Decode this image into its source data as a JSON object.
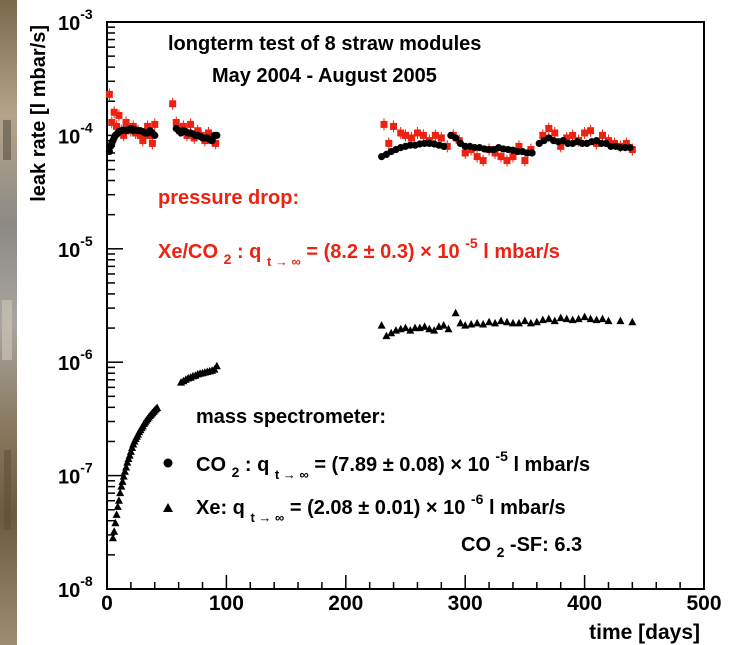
{
  "chart_data": {
    "type": "scatter",
    "title_line1": "longterm test of 8 straw modules",
    "title_line2": "May 2004 - August 2005",
    "xlabel": "time [days]",
    "ylabel": "leak rate [l mbar/s]",
    "xlim": [
      0,
      500
    ],
    "ylim": [
      1e-08,
      0.001
    ],
    "yscale": "log",
    "x_ticks": [
      0,
      100,
      200,
      300,
      400,
      500
    ],
    "x_tick_labels": [
      "0",
      "100",
      "200",
      "300",
      "400",
      "500"
    ],
    "y_tick_labels": [
      {
        "mantissa": "10",
        "exp": "-8"
      },
      {
        "mantissa": "10",
        "exp": "-7"
      },
      {
        "mantissa": "10",
        "exp": "-6"
      },
      {
        "mantissa": "10",
        "exp": "-5"
      },
      {
        "mantissa": "10",
        "exp": "-4"
      },
      {
        "mantissa": "10",
        "exp": "-3"
      }
    ],
    "grid": false,
    "colors": {
      "red": "#ee2211",
      "black": "#000000"
    },
    "annotations": {
      "pressure_drop": "pressure drop:",
      "xe_co2_formula": {
        "lhs": "Xe/CO",
        "lhs_sub": "2",
        "colon": ": q",
        "q_sub": "t → ∞",
        "rhs": " = (8.2 ± 0.3) × 10",
        "exp": "-5",
        "unit": " l mbar/s"
      },
      "mass_spec": "mass spectrometer:",
      "co2_formula": {
        "lhs": "CO",
        "lhs_sub": "2",
        "colon": ": q",
        "q_sub": "t → ∞",
        "rhs": " = (7.89 ± 0.08) × 10",
        "exp": "-5",
        "unit": " l mbar/s"
      },
      "xe_formula": {
        "lhs": "Xe: q",
        "q_sub": "t → ∞",
        "rhs": " = (2.08 ± 0.01) × 10",
        "exp": "-6",
        "unit": " l mbar/s"
      },
      "sf_label": {
        "lhs": "CO",
        "lhs_sub": "2",
        "rhs": "-SF: 6.3"
      }
    },
    "series": [
      {
        "marker": "square",
        "color": "#ee2211",
        "x": [
          2,
          4,
          6,
          8,
          10,
          12,
          14,
          16,
          18,
          20,
          22,
          24,
          26,
          28,
          30,
          32,
          34,
          36,
          38,
          40,
          55,
          58,
          61,
          64,
          67,
          70,
          73,
          76,
          79,
          82,
          85,
          88,
          91,
          232,
          236,
          240,
          246,
          250,
          255,
          260,
          265,
          270,
          275,
          280,
          285,
          290,
          295,
          300,
          305,
          310,
          315,
          320,
          325,
          330,
          335,
          340,
          345,
          350,
          355,
          365,
          370,
          375,
          380,
          385,
          390,
          395,
          400,
          405,
          410,
          415,
          420,
          425,
          430,
          435,
          440
        ],
        "y": [
          0.00023,
          0.00013,
          0.00016,
          0.00012,
          0.00015,
          0.00011,
          0.0001,
          0.00013,
          0.000115,
          0.00011,
          0.00012,
          0.000105,
          0.00011,
          0.0001,
          9e-05,
          0.0001,
          0.00012,
          0.0001,
          8.5e-05,
          0.000125,
          0.00019,
          0.00013,
          0.00011,
          0.00012,
          0.0001,
          0.000125,
          9.5e-05,
          0.00011,
          0.0001,
          9e-05,
          0.000105,
          9e-05,
          8.5e-05,
          0.000125,
          8.5e-05,
          0.00012,
          0.000105,
          0.0001,
          9.5e-05,
          0.000105,
          0.0001,
          9e-05,
          0.0001,
          9.5e-05,
          8e-05,
          0.0001,
          9e-05,
          7e-05,
          7.5e-05,
          6.5e-05,
          6e-05,
          7.5e-05,
          7e-05,
          6.5e-05,
          6e-05,
          6.5e-05,
          8e-05,
          6e-05,
          7.5e-05,
          0.0001,
          0.000115,
          0.000105,
          8e-05,
          9.5e-05,
          0.0001,
          9e-05,
          0.000105,
          0.00011,
          8.5e-05,
          0.0001,
          9e-05,
          8.5e-05,
          8e-05,
          8.5e-05,
          7.5e-05
        ]
      },
      {
        "marker": "circle",
        "color": "#000000",
        "x": [
          2,
          3,
          4,
          5,
          6,
          7,
          8,
          9,
          10,
          12,
          14,
          16,
          18,
          20,
          22,
          24,
          26,
          28,
          30,
          32,
          34,
          36,
          38,
          40,
          58,
          60,
          62,
          64,
          66,
          68,
          70,
          72,
          74,
          76,
          78,
          80,
          82,
          84,
          86,
          88,
          90,
          92,
          230,
          234,
          238,
          242,
          246,
          250,
          254,
          258,
          262,
          266,
          270,
          274,
          278,
          282,
          288,
          292,
          296,
          300,
          304,
          308,
          312,
          316,
          320,
          324,
          328,
          332,
          336,
          340,
          344,
          348,
          352,
          356,
          362,
          366,
          370,
          374,
          378,
          382,
          386,
          390,
          394,
          398,
          402,
          406,
          410,
          414,
          418,
          422,
          426,
          430,
          434,
          438
        ],
        "y": [
          7.2e-05,
          8e-05,
          8.5e-05,
          9e-05,
          9.5e-05,
          0.0001,
          0.000102,
          0.000105,
          0.000108,
          0.00011,
          0.000112,
          0.00011,
          0.000112,
          0.000115,
          0.00011,
          0.000112,
          0.00011,
          0.00011,
          0.000108,
          0.000105,
          0.000105,
          0.00011,
          0.000105,
          0.0001,
          0.000115,
          0.00011,
          0.000105,
          0.00011,
          0.000108,
          0.000105,
          0.000105,
          0.000103,
          0.0001,
          0.0001,
          9.8e-05,
          9.5e-05,
          9.5e-05,
          9.5e-05,
          9.2e-05,
          9e-05,
          0.0001,
          0.0001,
          6.5e-05,
          6.8e-05,
          7.2e-05,
          7.5e-05,
          7.8e-05,
          8e-05,
          8.2e-05,
          8.2e-05,
          8.4e-05,
          8.5e-05,
          8.5e-05,
          8.4e-05,
          8.2e-05,
          8e-05,
          0.0001,
          9.5e-05,
          8.5e-05,
          8e-05,
          8e-05,
          7.8e-05,
          7.8e-05,
          7.6e-05,
          7.5e-05,
          7.5e-05,
          7.8e-05,
          7.6e-05,
          7.5e-05,
          7.4e-05,
          7.2e-05,
          7.2e-05,
          7e-05,
          7e-05,
          8.5e-05,
          9e-05,
          9.5e-05,
          9e-05,
          8.8e-05,
          9e-05,
          8.5e-05,
          8.5e-05,
          8.8e-05,
          8.5e-05,
          8.5e-05,
          8.8e-05,
          9e-05,
          8.5e-05,
          8.5e-05,
          8e-05,
          8e-05,
          7.8e-05,
          7.8e-05,
          7.8e-05
        ]
      },
      {
        "marker": "triangle",
        "color": "#000000",
        "x": [
          5,
          6,
          7,
          8,
          9,
          10,
          11,
          12,
          13,
          14,
          15,
          16,
          17,
          18,
          19,
          20,
          21,
          22,
          23,
          24,
          25,
          26,
          27,
          28,
          29,
          30,
          31,
          32,
          33,
          34,
          35,
          36,
          37,
          38,
          39,
          40,
          41,
          42,
          62,
          64,
          66,
          68,
          70,
          72,
          74,
          76,
          78,
          80,
          82,
          84,
          86,
          88,
          90,
          92,
          230,
          234,
          238,
          242,
          246,
          250,
          254,
          258,
          262,
          266,
          270,
          274,
          278,
          282,
          286,
          292,
          296,
          300,
          305,
          310,
          315,
          320,
          325,
          330,
          335,
          340,
          345,
          350,
          355,
          360,
          365,
          370,
          375,
          380,
          385,
          390,
          395,
          400,
          405,
          410,
          415,
          420,
          430,
          440
        ],
        "y": [
          2.8e-08,
          3.2e-08,
          3.8e-08,
          4.5e-08,
          5.3e-08,
          6e-08,
          7e-08,
          8e-08,
          8.8e-08,
          9.8e-08,
          1.08e-07,
          1.18e-07,
          1.3e-07,
          1.4e-07,
          1.5e-07,
          1.62e-07,
          1.75e-07,
          1.88e-07,
          2e-07,
          2.1e-07,
          2.2e-07,
          2.3e-07,
          2.42e-07,
          2.52e-07,
          2.62e-07,
          2.72e-07,
          2.85e-07,
          2.95e-07,
          3.05e-07,
          3.15e-07,
          3.25e-07,
          3.35e-07,
          3.45e-07,
          3.55e-07,
          3.65e-07,
          3.75e-07,
          3.85e-07,
          3.95e-07,
          6.6e-07,
          6.8e-07,
          7e-07,
          7.2e-07,
          7.3e-07,
          7.5e-07,
          7.6e-07,
          7.8e-07,
          7.9e-07,
          8e-07,
          8.1e-07,
          8.2e-07,
          8.3e-07,
          8.4e-07,
          8.6e-07,
          9.2e-07,
          2.1e-06,
          1.7e-06,
          1.8e-06,
          1.9e-06,
          1.95e-06,
          2e-06,
          1.9e-06,
          2e-06,
          2e-06,
          2.05e-06,
          1.95e-06,
          1.9e-06,
          2.05e-06,
          2.1e-06,
          1.95e-06,
          2.7e-06,
          2.2e-06,
          2.1e-06,
          2.15e-06,
          2.2e-06,
          2.15e-06,
          2.25e-06,
          2.2e-06,
          2.3e-06,
          2.25e-06,
          2.2e-06,
          2.2e-06,
          2.3e-06,
          2.2e-06,
          2.25e-06,
          2.35e-06,
          2.4e-06,
          2.3e-06,
          2.45e-06,
          2.4e-06,
          2.35e-06,
          2.4e-06,
          2.5e-06,
          2.4e-06,
          2.35e-06,
          2.4e-06,
          2.3e-06,
          2.3e-06,
          2.25e-06
        ]
      }
    ]
  }
}
